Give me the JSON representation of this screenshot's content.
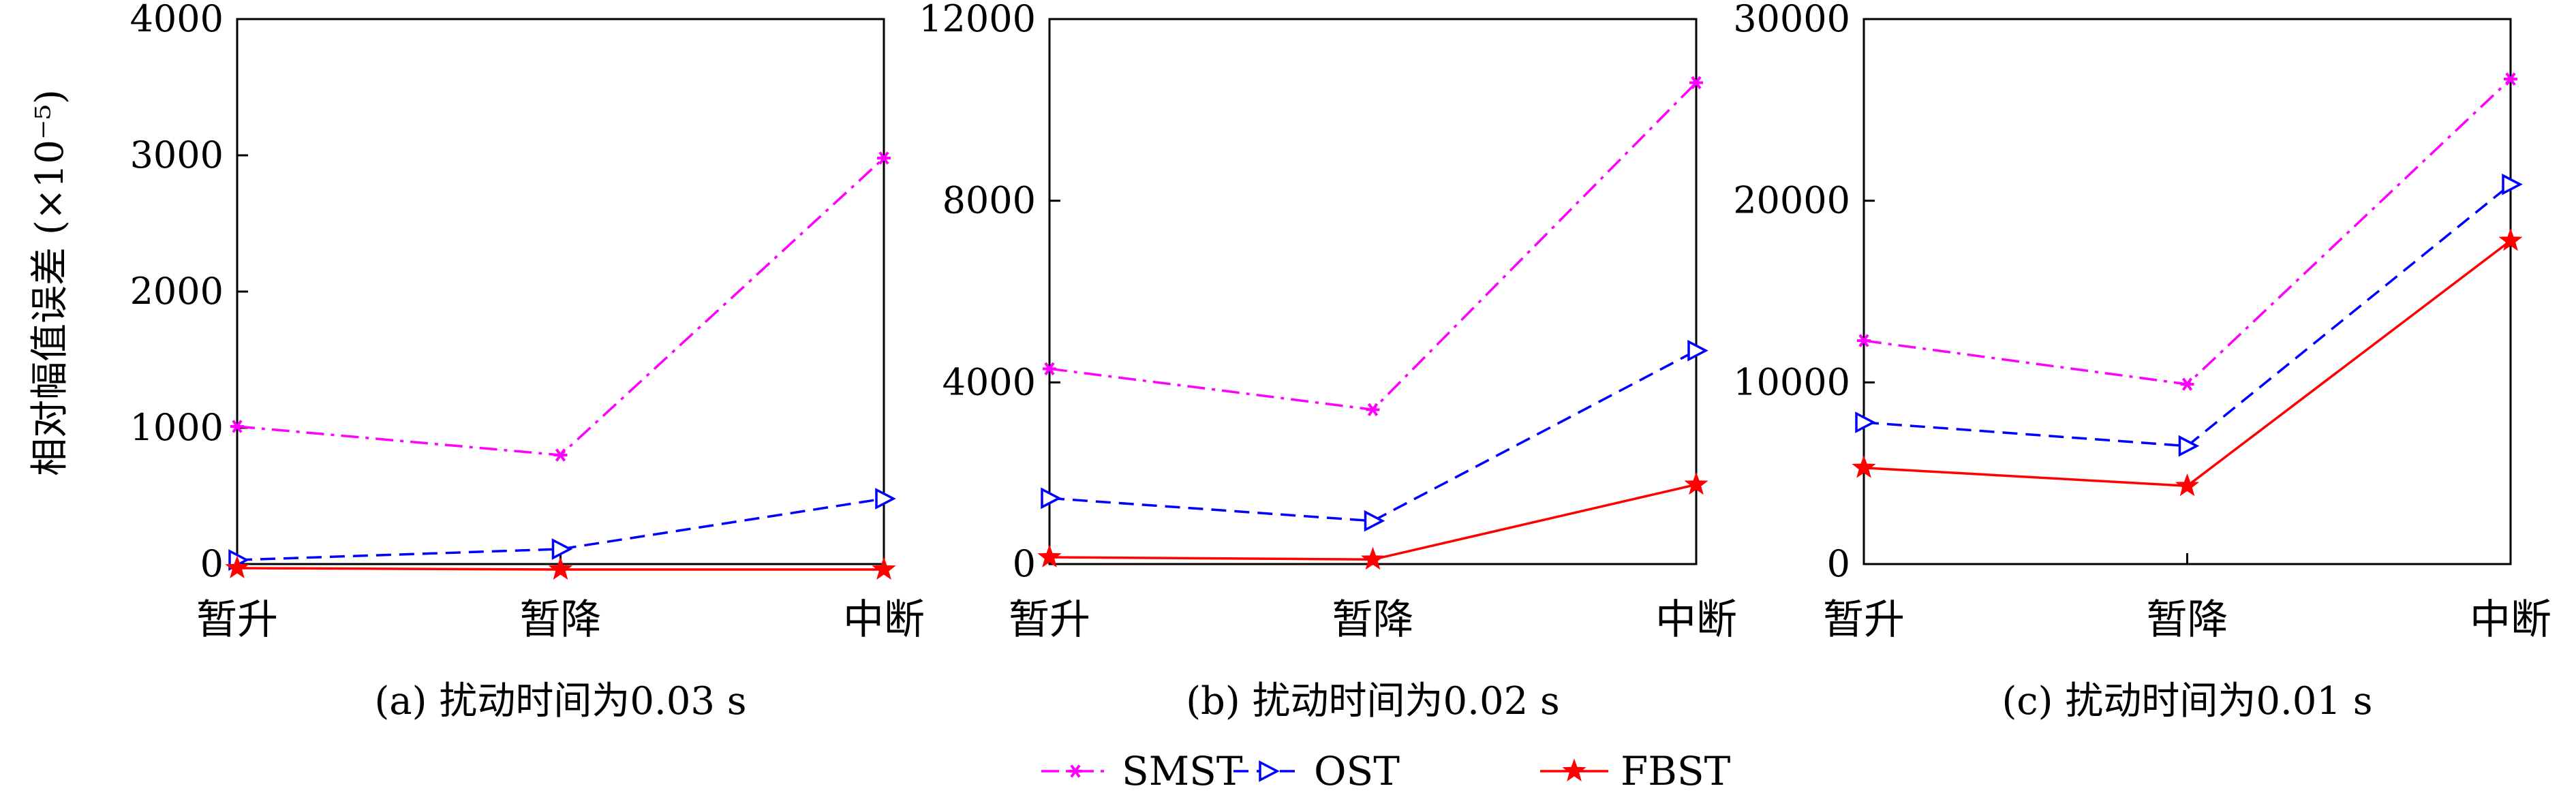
{
  "figure": {
    "ylabel": "相对幅值误差 (×10⁻⁵)"
  },
  "legend": [
    {
      "label": "SMST",
      "color": "#ff00ff",
      "dash": "dashdot",
      "marker": "asterisk"
    },
    {
      "label": "OST",
      "color": "#0000ff",
      "dash": "dashed",
      "marker": "triangle-right"
    },
    {
      "label": "FBST",
      "color": "#ff0000",
      "dash": "solid",
      "marker": "star"
    }
  ],
  "chart_data": [
    {
      "type": "line",
      "caption": "(a) 扰动时间为0.03 s",
      "categories": [
        "暂升",
        "暂降",
        "中断"
      ],
      "ylim": [
        0,
        4000
      ],
      "yticks": [
        0,
        1000,
        2000,
        3000,
        4000
      ],
      "ylabel": "相对幅值误差 (×10⁻⁵)",
      "series": [
        {
          "name": "SMST",
          "values": [
            1010,
            800,
            2980
          ]
        },
        {
          "name": "OST",
          "values": [
            30,
            110,
            480
          ]
        },
        {
          "name": "FBST",
          "values": [
            -30,
            -40,
            -40
          ]
        }
      ]
    },
    {
      "type": "line",
      "caption": "(b) 扰动时间为0.02 s",
      "categories": [
        "暂升",
        "暂降",
        "中断"
      ],
      "ylim": [
        0,
        12000
      ],
      "yticks": [
        0,
        4000,
        8000,
        12000
      ],
      "series": [
        {
          "name": "SMST",
          "values": [
            4300,
            3400,
            10600
          ]
        },
        {
          "name": "OST",
          "values": [
            1450,
            950,
            4700
          ]
        },
        {
          "name": "FBST",
          "values": [
            150,
            100,
            1750
          ]
        }
      ]
    },
    {
      "type": "line",
      "caption": "(c) 扰动时间为0.01 s",
      "categories": [
        "暂升",
        "暂降",
        "中断"
      ],
      "ylim": [
        0,
        30000
      ],
      "yticks": [
        0,
        10000,
        20000,
        30000
      ],
      "series": [
        {
          "name": "SMST",
          "values": [
            12300,
            9900,
            26700
          ]
        },
        {
          "name": "OST",
          "values": [
            7800,
            6500,
            20900
          ]
        },
        {
          "name": "FBST",
          "values": [
            5300,
            4300,
            17800
          ]
        }
      ]
    }
  ]
}
